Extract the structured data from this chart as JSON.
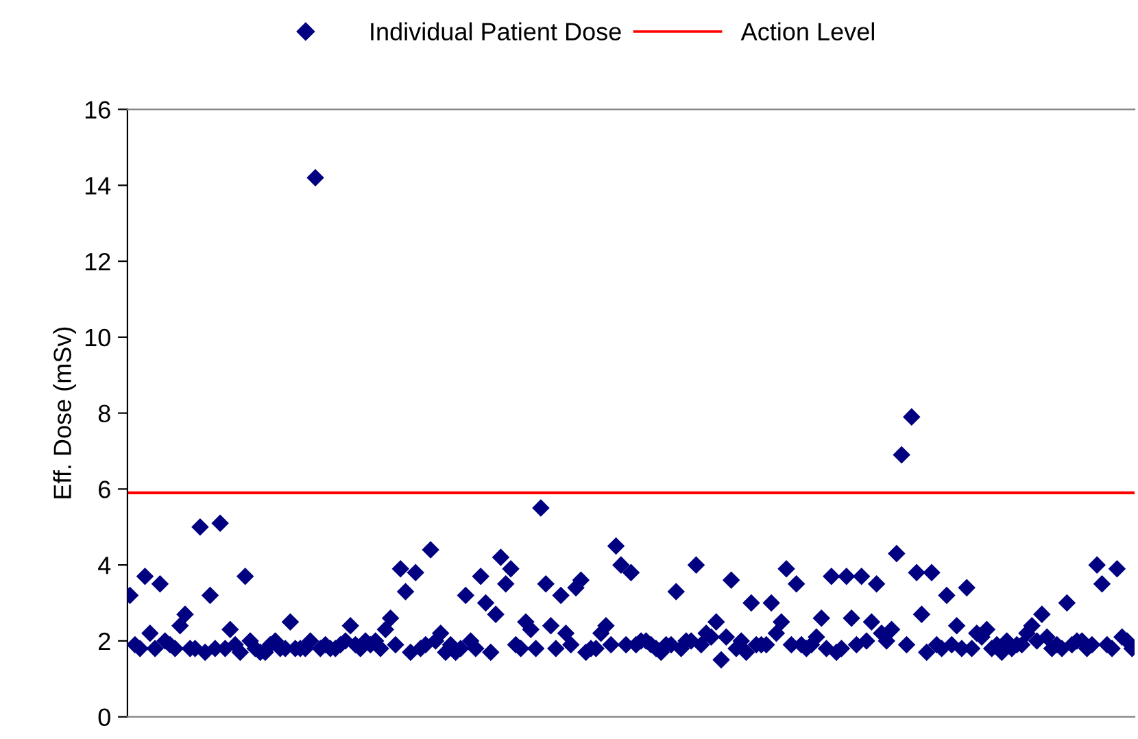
{
  "chart_data": {
    "type": "scatter",
    "ylabel": "Eff. Dose (mSv)",
    "categories": [
      null,
      null,
      null,
      null,
      null,
      null,
      null,
      null,
      null,
      null,
      null,
      null,
      null,
      null,
      null,
      null,
      null,
      null,
      null,
      null,
      null,
      null,
      null,
      null,
      null,
      null,
      null,
      null,
      null,
      null,
      null,
      null,
      null,
      null,
      null,
      null,
      null,
      null,
      null,
      null,
      null,
      null,
      null,
      null,
      null,
      null,
      null,
      null,
      null,
      null,
      null,
      null,
      null,
      null,
      null,
      null,
      null,
      null,
      null,
      null,
      null,
      null,
      null,
      null,
      null,
      null,
      null,
      null,
      null,
      null,
      null,
      null,
      null,
      null,
      null,
      null,
      null,
      null,
      null,
      null,
      null,
      null,
      null,
      null,
      null,
      null,
      null,
      null,
      null,
      null,
      null,
      null,
      null,
      null,
      null,
      null,
      null,
      null,
      null,
      null,
      null,
      null,
      null,
      null,
      null,
      null,
      null,
      null,
      null,
      null,
      null,
      null,
      null,
      null,
      null,
      null,
      null,
      null,
      null,
      null,
      null,
      null,
      null,
      null,
      null,
      null,
      null,
      null,
      null,
      null,
      null,
      null,
      null,
      null,
      null,
      null,
      null,
      null,
      null,
      null,
      null,
      null,
      null,
      null,
      null,
      null,
      null,
      null,
      null,
      null,
      null,
      null,
      null,
      null,
      null,
      null,
      null,
      null,
      null,
      null,
      null,
      null,
      null,
      null,
      null,
      null,
      null,
      null,
      null,
      null,
      null,
      null,
      null,
      null,
      null,
      null,
      null,
      null,
      null,
      null,
      null,
      null,
      null,
      null,
      null,
      null,
      null,
      null,
      null,
      null,
      null,
      null,
      null,
      null,
      null,
      null,
      null,
      null,
      null,
      null,
      null
    ],
    "series": [
      {
        "name": "Individual Patient Dose",
        "color": "#000080",
        "values": [
          3.2,
          1.9,
          1.8,
          3.7,
          2.2,
          1.8,
          3.5,
          2.0,
          1.9,
          1.8,
          2.4,
          2.7,
          1.8,
          1.8,
          5.0,
          1.7,
          3.2,
          1.8,
          5.1,
          1.8,
          2.3,
          1.9,
          1.7,
          3.7,
          2.0,
          1.8,
          1.7,
          1.7,
          1.9,
          2.0,
          1.8,
          1.8,
          2.5,
          1.8,
          1.8,
          1.8,
          2.0,
          14.2,
          1.8,
          1.9,
          1.8,
          1.8,
          1.9,
          2.0,
          2.4,
          1.9,
          1.8,
          2.0,
          1.9,
          2.0,
          1.8,
          2.3,
          2.6,
          1.9,
          3.9,
          3.3,
          1.7,
          3.8,
          1.8,
          1.9,
          4.4,
          2.0,
          2.2,
          1.7,
          1.9,
          1.7,
          1.8,
          3.2,
          2.0,
          1.8,
          3.7,
          3.0,
          1.7,
          2.7,
          4.2,
          3.5,
          3.9,
          1.9,
          1.8,
          2.5,
          2.3,
          1.8,
          5.5,
          3.5,
          2.4,
          1.8,
          3.2,
          2.2,
          1.9,
          3.4,
          3.6,
          1.7,
          1.8,
          1.8,
          2.2,
          2.4,
          1.9,
          4.5,
          4.0,
          1.9,
          3.8,
          1.9,
          2.0,
          2.0,
          1.9,
          1.8,
          1.7,
          1.9,
          1.9,
          3.3,
          1.8,
          2.0,
          2.0,
          4.0,
          1.9,
          2.2,
          2.1,
          2.5,
          1.5,
          2.1,
          3.6,
          1.8,
          2.0,
          1.7,
          3.0,
          1.9,
          1.9,
          1.9,
          3.0,
          2.2,
          2.5,
          3.9,
          1.9,
          3.5,
          1.9,
          1.8,
          1.9,
          2.1,
          2.6,
          1.8,
          3.7,
          1.7,
          1.8,
          3.7,
          2.6,
          1.9,
          3.7,
          2.0,
          2.5,
          3.5,
          2.2,
          2.0,
          2.3,
          4.3,
          6.9,
          1.9,
          7.9,
          3.8,
          2.7,
          1.7,
          3.8,
          1.9,
          1.8,
          3.2,
          1.9,
          2.4,
          1.8,
          3.4,
          1.8,
          2.2,
          2.1,
          2.3,
          1.8,
          1.9,
          1.7,
          2.0,
          1.8,
          1.9,
          1.9,
          2.2,
          2.4,
          2.0,
          2.7,
          2.1,
          1.8,
          1.9,
          1.8,
          3.0,
          1.9,
          2.0,
          2.0,
          1.8,
          1.9,
          4.0,
          3.5,
          1.9,
          1.8,
          3.9,
          2.1,
          2.0,
          1.8
        ]
      }
    ],
    "ref_lines": [
      {
        "axis": "y",
        "value": 5.9,
        "label": "Action Level",
        "color": "#ff0000",
        "line_style": "solid"
      }
    ],
    "ylim": [
      0,
      16
    ],
    "yticks": [
      0,
      2,
      4,
      6,
      8,
      10,
      12,
      14,
      16
    ],
    "tick_labels": "y",
    "marker": "diamond",
    "legend": "top"
  }
}
